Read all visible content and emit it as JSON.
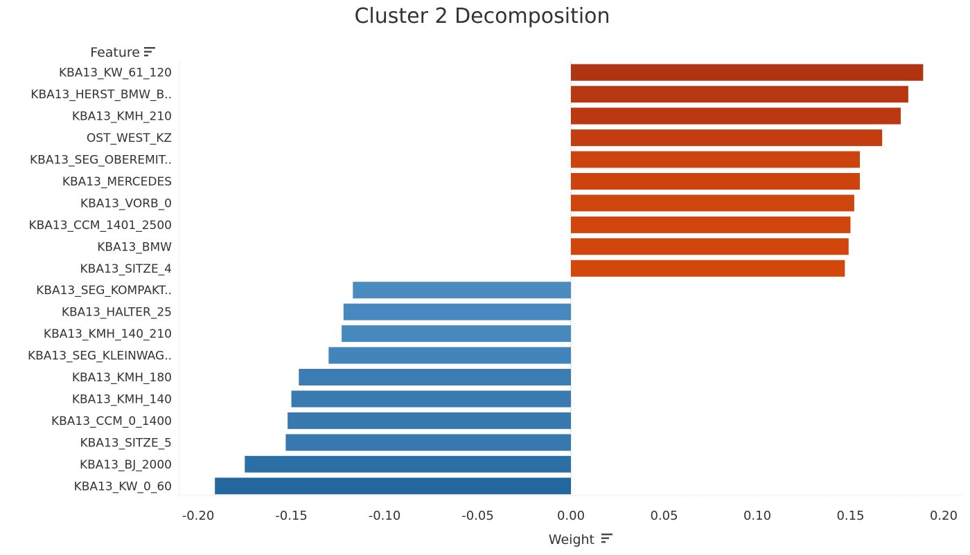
{
  "chart_data": {
    "type": "bar",
    "orientation": "horizontal",
    "title": "Cluster 2 Decomposition",
    "xlabel": "Weight",
    "ylabel": "Feature",
    "xlim": [
      -0.21,
      0.21
    ],
    "xticks": [
      "-0.20",
      "-0.15",
      "-0.10",
      "-0.05",
      "0.00",
      "0.05",
      "0.10",
      "0.15",
      "0.20"
    ],
    "categories": [
      "KBA13_KW_61_120",
      "KBA13_HERST_BMW_B..",
      "KBA13_KMH_210",
      "OST_WEST_KZ",
      "KBA13_SEG_OBEREMIT..",
      "KBA13_MERCEDES",
      "KBA13_VORB_0",
      "KBA13_CCM_1401_2500",
      "KBA13_BMW",
      "KBA13_SITZE_4",
      "KBA13_SEG_KOMPAKT..",
      "KBA13_HALTER_25",
      "KBA13_KMH_140_210",
      "KBA13_SEG_KLEINWAG..",
      "KBA13_KMH_180",
      "KBA13_KMH_140",
      "KBA13_CCM_0_1400",
      "KBA13_SITZE_5",
      "KBA13_BJ_2000",
      "KBA13_KW_0_60"
    ],
    "values": [
      0.189,
      0.181,
      0.177,
      0.167,
      0.155,
      0.155,
      0.152,
      0.15,
      0.149,
      0.147,
      -0.117,
      -0.122,
      -0.123,
      -0.13,
      -0.146,
      -0.15,
      -0.152,
      -0.153,
      -0.175,
      -0.191
    ],
    "colors": {
      "positive_dark": "#b03312",
      "positive_light": "#d2470c",
      "negative_light": "#4a8bc0",
      "negative_dark": "#23679c"
    },
    "grid": false,
    "legend": "none"
  },
  "icons": {
    "ylabel_sort": "sort-icon",
    "xlabel_sort": "sort-icon"
  }
}
